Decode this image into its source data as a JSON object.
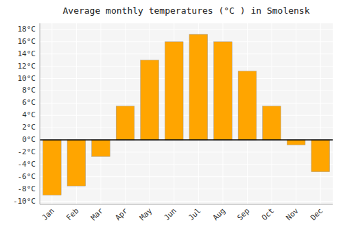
{
  "chart_data": {
    "type": "bar",
    "title": "Average monthly temperatures (°C ) in Smolensk",
    "categories": [
      "Jan",
      "Feb",
      "Mar",
      "Apr",
      "May",
      "Jun",
      "Jul",
      "Aug",
      "Sep",
      "Oct",
      "Nov",
      "Dec"
    ],
    "values": [
      -9,
      -7.5,
      -2.7,
      5.5,
      13,
      16,
      17.2,
      16,
      11.2,
      5.5,
      -0.8,
      -5.2
    ],
    "color": "#FFA500",
    "ylim": [
      -10.5,
      19
    ],
    "yticks": [
      {
        "value": -10,
        "label": "-10°C"
      },
      {
        "value": -8,
        "label": "-8°C"
      },
      {
        "value": -6,
        "label": "-6°C"
      },
      {
        "value": -4,
        "label": "-4°C"
      },
      {
        "value": -2,
        "label": "-2°C"
      },
      {
        "value": 0,
        "label": "0°C"
      },
      {
        "value": 2,
        "label": "2°C"
      },
      {
        "value": 4,
        "label": "4°C"
      },
      {
        "value": 6,
        "label": "6°C"
      },
      {
        "value": 8,
        "label": "8°C"
      },
      {
        "value": 10,
        "label": "10°C"
      },
      {
        "value": 12,
        "label": "12°C"
      },
      {
        "value": 14,
        "label": "14°C"
      },
      {
        "value": 16,
        "label": "16°C"
      },
      {
        "value": 18,
        "label": "18°C"
      }
    ],
    "grid": true
  }
}
